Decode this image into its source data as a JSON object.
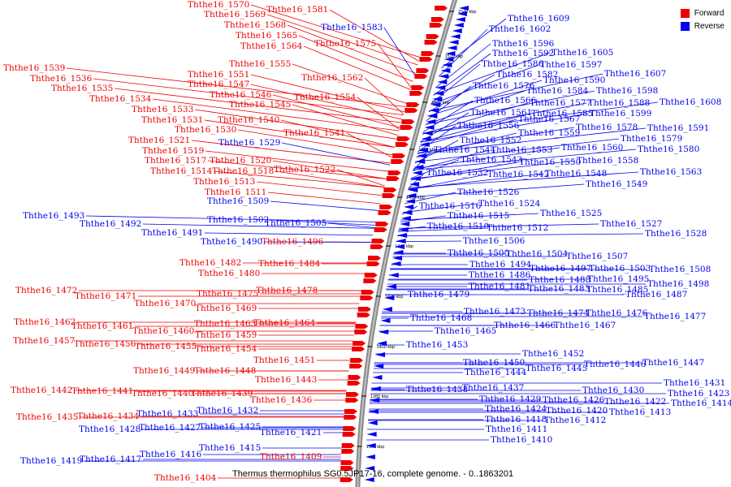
{
  "title": "Thermus thermophilus SG0.5JP17-16, complete genome. - 0..1863201",
  "legend": [
    {
      "label": "Forward",
      "color": "#ee0000"
    },
    {
      "label": "Reverse",
      "color": "#0000ee"
    }
  ],
  "scale_labels": [
    "1540 kbp",
    "1520 kbp",
    "1500 kbp",
    "1480 kbp",
    "1460 kbp",
    "1440 kbp",
    "1420 kbp",
    "1400 kbp",
    "1380 kbp",
    "1360 kbp"
  ],
  "forward_genes": [
    "Ththe16_1570",
    "Ththe16_1569",
    "Ththe16_1568",
    "Ththe16_1565",
    "Ththe16_1564",
    "Ththe16_1581",
    "Ththe16_1575",
    "Ththe16_1555",
    "Ththe16_1539",
    "Ththe16_1536",
    "Ththe16_1535",
    "Ththe16_1534",
    "Ththe16_1533",
    "Ththe16_1551",
    "Ththe16_1547",
    "Ththe16_1546",
    "Ththe16_1545",
    "Ththe16_1562",
    "Ththe16_1554",
    "Ththe16_1531",
    "Ththe16_1540",
    "Ththe16_1530",
    "Ththe16_1541",
    "Ththe16_1521",
    "Ththe16_1519",
    "Ththe16_1517",
    "Ththe16_1520",
    "Ththe16_1514",
    "Ththe16_1518",
    "Ththe16_1522",
    "Ththe16_1513",
    "Ththe16_1511",
    "Ththe16_1496",
    "Ththe16_1482",
    "Ththe16_1484",
    "Ththe16_1480",
    "Ththe16_1472",
    "Ththe16_1471",
    "Ththe16_1475",
    "Ththe16_1478",
    "Ththe16_1470",
    "Ththe16_1469",
    "Ththe16_1462",
    "Ththe16_1461",
    "Ththe16_1463",
    "Ththe16_1464",
    "Ththe16_1460",
    "Ththe16_1459",
    "Ththe16_1457",
    "Ththe16_1456",
    "Ththe16_1455",
    "Ththe16_1454",
    "Ththe16_1451",
    "Ththe16_1449",
    "Ththe16_1448",
    "Ththe16_1443",
    "Ththe16_1442",
    "Ththe16_1441",
    "Ththe16_1440",
    "Ththe16_1439",
    "Ththe16_1436",
    "Ththe16_1435",
    "Ththe16_1434",
    "Ththe16_1409",
    "Ththe16_1404"
  ],
  "reverse_genes": [
    "Ththe16_1609",
    "Ththe16_1602",
    "Ththe16_1596",
    "Ththe16_1592",
    "Ththe16_1605",
    "Ththe16_1586",
    "Ththe16_1597",
    "Ththe16_1582",
    "Ththe16_1607",
    "Ththe16_1576",
    "Ththe16_1590",
    "Ththe16_1584",
    "Ththe16_1598",
    "Ththe16_1566",
    "Ththe16_1577",
    "Ththe16_1588",
    "Ththe16_1608",
    "Ththe16_1561",
    "Ththe16_1585",
    "Ththe16_1599",
    "Ththe16_1567",
    "Ththe16_1556",
    "Ththe16_1578",
    "Ththe16_1591",
    "Ththe16_1559",
    "Ththe16_1552",
    "Ththe16_1579",
    "Ththe16_1544",
    "Ththe16_1553",
    "Ththe16_1560",
    "Ththe16_1580",
    "Ththe16_1543",
    "Ththe16_1550",
    "Ththe16_1558",
    "Ththe16_1532",
    "Ththe16_1542",
    "Ththe16_1548",
    "Ththe16_1563",
    "Ththe16_1549",
    "Ththe16_1526",
    "Ththe16_1524",
    "Ththe16_1516",
    "Ththe16_1525",
    "Ththe16_1515",
    "Ththe16_1527",
    "Ththe16_1510",
    "Ththe16_1512",
    "Ththe16_1528",
    "Ththe16_1506",
    "Ththe16_1500",
    "Ththe16_1504",
    "Ththe16_1507",
    "Ththe16_1494",
    "Ththe16_1497",
    "Ththe16_1503",
    "Ththe16_1508",
    "Ththe16_1486",
    "Ththe16_1488",
    "Ththe16_1495",
    "Ththe16_1481",
    "Ththe16_1483",
    "Ththe16_1485",
    "Ththe16_1498",
    "Ththe16_1487",
    "Ththe16_1479",
    "Ththe16_1473",
    "Ththe16_1474",
    "Ththe16_1476",
    "Ththe16_1477",
    "Ththe16_1468",
    "Ththe16_1466",
    "Ththe16_1467",
    "Ththe16_1465",
    "Ththe16_1453",
    "Ththe16_1452",
    "Ththe16_1450",
    "Ththe16_1446",
    "Ththe16_1447",
    "Ththe16_1444",
    "Ththe16_1445",
    "Ththe16_1438",
    "Ththe16_1437",
    "Ththe16_1430",
    "Ththe16_1431",
    "Ththe16_1429",
    "Ththe16_1426",
    "Ththe16_1422",
    "Ththe16_1423",
    "Ththe16_1414",
    "Ththe16_1424",
    "Ththe16_1420",
    "Ththe16_1413",
    "Ththe16_1418",
    "Ththe16_1412",
    "Ththe16_1411",
    "Ththe16_1410",
    "Ththe16_1493",
    "Ththe16_1492",
    "Ththe16_1491",
    "Ththe16_1490",
    "Ththe16_1509",
    "Ththe16_1502",
    "Ththe16_1505",
    "Ththe16_1529",
    "Ththe16_1583",
    "Ththe16_1433",
    "Ththe16_1432",
    "Ththe16_1428",
    "Ththe16_1427",
    "Ththe16_1425",
    "Ththe16_1421",
    "Ththe16_1415",
    "Ththe16_1416",
    "Ththe16_1417",
    "Ththe16_1419"
  ]
}
